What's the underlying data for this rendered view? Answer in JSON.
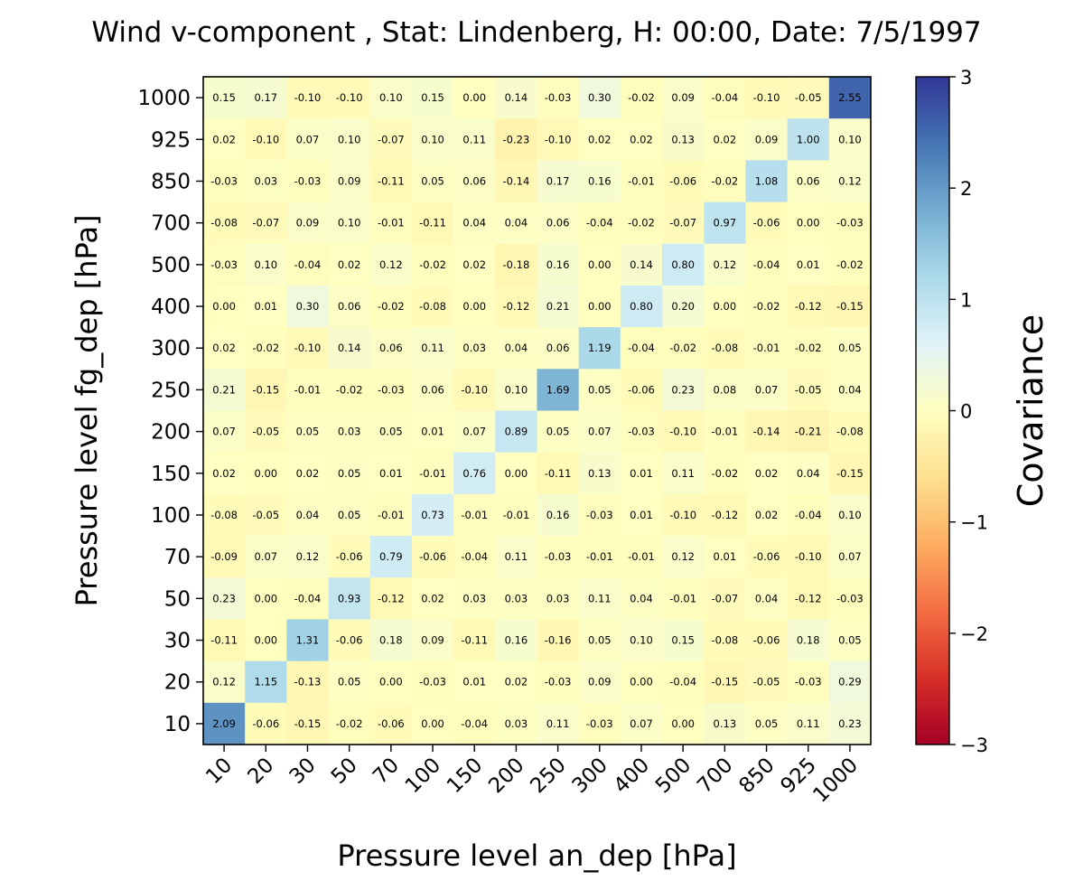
{
  "chart_data": {
    "type": "heatmap",
    "title": "Wind v-component , Stat: Lindenberg, H: 00:00, Date: 7/5/1997",
    "xlabel": "Pressure level an_dep [hPa]",
    "ylabel": "Pressure level fg_dep [hPa]",
    "x_categories": [
      "10",
      "20",
      "30",
      "50",
      "70",
      "100",
      "150",
      "200",
      "250",
      "300",
      "400",
      "500",
      "700",
      "850",
      "925",
      "1000"
    ],
    "y_categories": [
      "1000",
      "925",
      "850",
      "700",
      "500",
      "400",
      "300",
      "250",
      "200",
      "150",
      "100",
      "70",
      "50",
      "30",
      "20",
      "10"
    ],
    "values": [
      [
        0.15,
        0.17,
        -0.1,
        -0.1,
        0.1,
        0.15,
        0.0,
        0.14,
        -0.03,
        0.3,
        -0.02,
        0.09,
        -0.04,
        -0.1,
        -0.05,
        2.55
      ],
      [
        0.02,
        -0.1,
        0.07,
        0.1,
        -0.07,
        0.1,
        0.11,
        -0.23,
        -0.1,
        0.02,
        0.02,
        0.13,
        0.02,
        0.09,
        1.0,
        0.1
      ],
      [
        -0.03,
        0.03,
        -0.03,
        0.09,
        -0.11,
        0.05,
        0.06,
        -0.14,
        0.17,
        0.16,
        -0.01,
        -0.06,
        -0.02,
        1.08,
        0.06,
        0.12
      ],
      [
        -0.08,
        -0.07,
        0.09,
        0.1,
        -0.01,
        -0.11,
        0.04,
        0.04,
        0.06,
        -0.04,
        -0.02,
        -0.07,
        0.97,
        -0.06,
        0.0,
        -0.03
      ],
      [
        -0.03,
        0.1,
        -0.04,
        0.02,
        0.12,
        -0.02,
        0.02,
        -0.18,
        0.16,
        0.0,
        0.14,
        0.8,
        0.12,
        -0.04,
        0.01,
        -0.02
      ],
      [
        0.0,
        0.01,
        0.3,
        0.06,
        -0.02,
        -0.08,
        0.0,
        -0.12,
        0.21,
        0.0,
        0.8,
        0.2,
        -0.0,
        -0.02,
        -0.12,
        -0.15
      ],
      [
        0.02,
        -0.02,
        -0.1,
        0.14,
        0.06,
        0.11,
        0.03,
        0.04,
        0.06,
        1.19,
        -0.04,
        -0.02,
        -0.08,
        -0.01,
        -0.02,
        0.05
      ],
      [
        0.21,
        -0.15,
        -0.01,
        -0.02,
        -0.03,
        0.06,
        -0.1,
        0.1,
        1.69,
        0.05,
        -0.06,
        0.23,
        0.08,
        0.07,
        -0.05,
        0.04
      ],
      [
        0.07,
        -0.05,
        0.05,
        0.03,
        0.05,
        0.01,
        0.07,
        0.89,
        0.05,
        0.07,
        -0.03,
        -0.1,
        -0.01,
        -0.14,
        -0.21,
        -0.08
      ],
      [
        0.02,
        -0.0,
        0.02,
        0.05,
        0.01,
        -0.01,
        0.76,
        -0.0,
        -0.11,
        0.13,
        0.01,
        0.11,
        -0.02,
        0.02,
        0.04,
        -0.15
      ],
      [
        -0.08,
        -0.05,
        0.04,
        0.05,
        -0.01,
        0.73,
        -0.01,
        -0.01,
        0.16,
        -0.03,
        0.01,
        -0.1,
        -0.12,
        0.02,
        -0.04,
        0.1
      ],
      [
        -0.09,
        0.07,
        0.12,
        -0.06,
        0.79,
        -0.06,
        -0.04,
        0.11,
        -0.03,
        -0.01,
        -0.01,
        0.12,
        0.01,
        -0.06,
        -0.1,
        0.07
      ],
      [
        0.23,
        -0.0,
        -0.04,
        0.93,
        -0.12,
        0.02,
        0.03,
        0.03,
        0.03,
        0.11,
        0.04,
        -0.01,
        -0.07,
        0.04,
        -0.12,
        -0.03
      ],
      [
        -0.11,
        -0.0,
        1.31,
        -0.06,
        0.18,
        0.09,
        -0.11,
        0.16,
        -0.16,
        0.05,
        0.1,
        0.15,
        -0.08,
        -0.06,
        0.18,
        0.05
      ],
      [
        0.12,
        1.15,
        -0.13,
        0.05,
        -0.0,
        -0.03,
        0.01,
        0.02,
        -0.03,
        0.09,
        -0.0,
        -0.04,
        -0.15,
        -0.05,
        -0.03,
        0.29
      ],
      [
        2.09,
        -0.06,
        -0.15,
        -0.02,
        -0.06,
        0.0,
        -0.04,
        0.03,
        0.11,
        -0.03,
        0.07,
        -0.0,
        0.13,
        0.05,
        0.11,
        0.23
      ]
    ],
    "value_labels_format": "0.00",
    "vmin": -3,
    "vmax": 3,
    "colormap": "RdYlBu",
    "colormap_stops": [
      "#a50026",
      "#d73027",
      "#f46d43",
      "#fdae61",
      "#fee090",
      "#ffffbf",
      "#e0f3f8",
      "#abd9e9",
      "#74add1",
      "#4575b4",
      "#313695"
    ],
    "colorbar": {
      "label": "Covariance",
      "ticks": [
        3,
        2,
        1,
        0,
        -1,
        -2,
        -3
      ],
      "tick_labels": [
        "3",
        "2",
        "1",
        "0",
        "−1",
        "−2",
        "−3"
      ],
      "placement": "right"
    },
    "grid": false
  }
}
